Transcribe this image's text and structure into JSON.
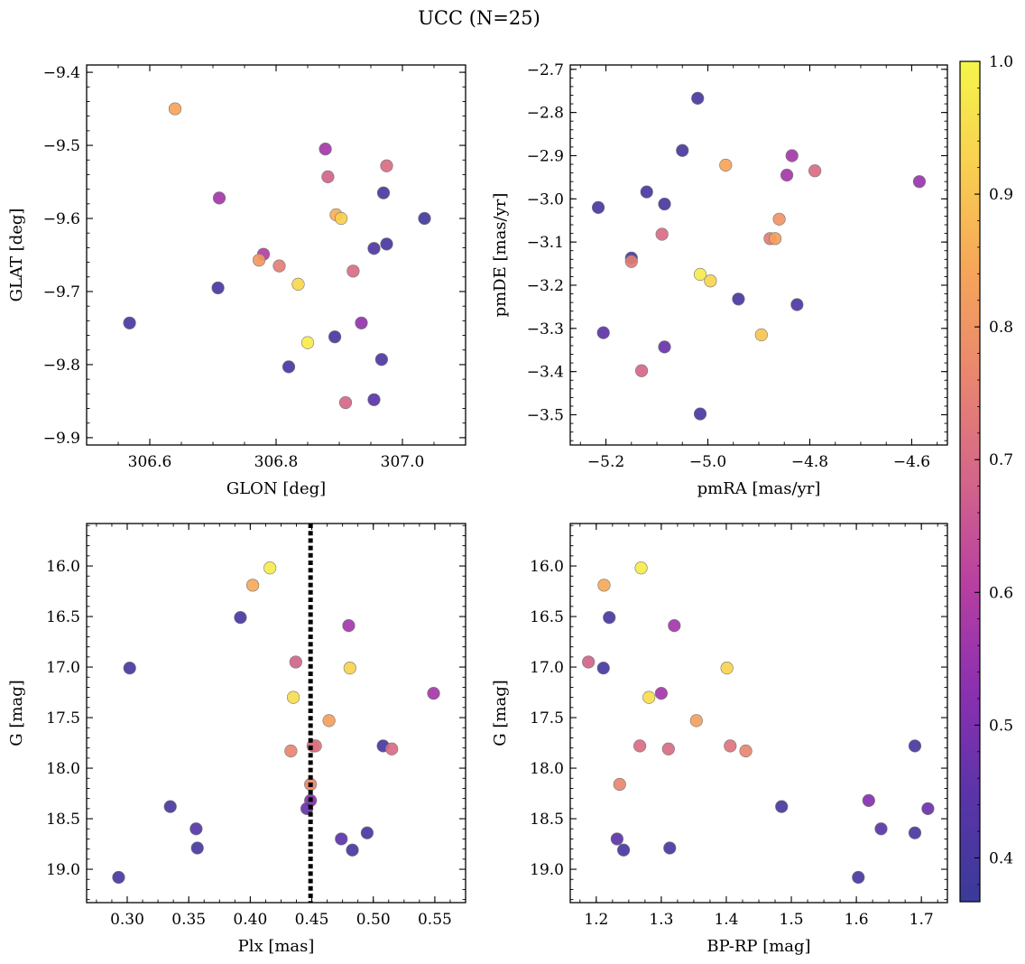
{
  "figure": {
    "title": "UCC (N=25)"
  },
  "colorbar": {
    "range": [
      0.367,
      1.0
    ],
    "ticks": [
      0.4,
      0.5,
      0.6,
      0.7,
      0.8,
      0.9,
      1.0
    ],
    "tick_labels": [
      "0.4",
      "0.5",
      "0.6",
      "0.7",
      "0.8",
      "0.9",
      "1.0"
    ],
    "colormap": "plasma",
    "colormap_stops": [
      "#3a3b98",
      "#5a34a8",
      "#8a30b0",
      "#b63fa2",
      "#d3658a",
      "#e9866f",
      "#f6a55a",
      "#f8cf50",
      "#f5f54b"
    ]
  },
  "chart_data": [
    {
      "type": "scatter",
      "xlabel": "GLON [deg]",
      "ylabel": "GLAT [deg]",
      "xlim": [
        306.5,
        307.1
      ],
      "ylim": [
        -9.91,
        -9.39
      ],
      "xticks": [
        306.6,
        306.8,
        307.0
      ],
      "xtick_labels": [
        "306.6",
        "306.8",
        "307.0"
      ],
      "yticks": [
        -9.4,
        -9.5,
        -9.6,
        -9.7,
        -9.8,
        -9.9
      ],
      "ytick_labels": [
        "−9.4",
        "−9.5",
        "−9.6",
        "−9.7",
        "−9.8",
        "−9.9"
      ],
      "points": [
        {
          "x": 306.64,
          "y": -9.45,
          "c": 0.84
        },
        {
          "x": 306.878,
          "y": -9.505,
          "c": 0.57
        },
        {
          "x": 306.975,
          "y": -9.528,
          "c": 0.7
        },
        {
          "x": 306.882,
          "y": -9.543,
          "c": 0.68
        },
        {
          "x": 306.97,
          "y": -9.565,
          "c": 0.4
        },
        {
          "x": 306.71,
          "y": -9.572,
          "c": 0.57
        },
        {
          "x": 306.895,
          "y": -9.595,
          "c": 0.86
        },
        {
          "x": 306.903,
          "y": -9.6,
          "c": 0.92
        },
        {
          "x": 307.035,
          "y": -9.6,
          "c": 0.39
        },
        {
          "x": 306.975,
          "y": -9.635,
          "c": 0.4
        },
        {
          "x": 306.955,
          "y": -9.641,
          "c": 0.42
        },
        {
          "x": 306.78,
          "y": -9.649,
          "c": 0.6
        },
        {
          "x": 306.773,
          "y": -9.657,
          "c": 0.81
        },
        {
          "x": 306.805,
          "y": -9.665,
          "c": 0.74
        },
        {
          "x": 306.922,
          "y": -9.672,
          "c": 0.7
        },
        {
          "x": 306.835,
          "y": -9.69,
          "c": 0.94
        },
        {
          "x": 306.708,
          "y": -9.695,
          "c": 0.4
        },
        {
          "x": 306.568,
          "y": -9.743,
          "c": 0.41
        },
        {
          "x": 306.935,
          "y": -9.743,
          "c": 0.54
        },
        {
          "x": 306.893,
          "y": -9.762,
          "c": 0.4
        },
        {
          "x": 306.85,
          "y": -9.77,
          "c": 0.98
        },
        {
          "x": 306.967,
          "y": -9.793,
          "c": 0.42
        },
        {
          "x": 306.82,
          "y": -9.803,
          "c": 0.4
        },
        {
          "x": 306.955,
          "y": -9.848,
          "c": 0.44
        },
        {
          "x": 306.91,
          "y": -9.852,
          "c": 0.69
        }
      ]
    },
    {
      "type": "scatter",
      "xlabel": "pmRA [mas/yr]",
      "ylabel": "pmDE [mas/yr]",
      "xlim": [
        -5.27,
        -4.53
      ],
      "ylim": [
        -3.57,
        -2.69
      ],
      "xticks": [
        -5.2,
        -5.0,
        -4.8,
        -4.6
      ],
      "xtick_labels": [
        "−5.2",
        "−5.0",
        "−4.8",
        "−4.6"
      ],
      "yticks": [
        -2.7,
        -2.8,
        -2.9,
        -3.0,
        -3.1,
        -3.2,
        -3.3,
        -3.4,
        -3.5
      ],
      "ytick_labels": [
        "−2.7",
        "−2.8",
        "−2.9",
        "−3.0",
        "−3.1",
        "−3.2",
        "−3.3",
        "−3.4",
        "−3.5"
      ],
      "points": [
        {
          "x": -5.02,
          "y": -2.767,
          "c": 0.4
        },
        {
          "x": -5.05,
          "y": -2.888,
          "c": 0.41
        },
        {
          "x": -4.835,
          "y": -2.9,
          "c": 0.57
        },
        {
          "x": -4.965,
          "y": -2.922,
          "c": 0.84
        },
        {
          "x": -4.79,
          "y": -2.935,
          "c": 0.7
        },
        {
          "x": -4.845,
          "y": -2.945,
          "c": 0.57
        },
        {
          "x": -4.585,
          "y": -2.96,
          "c": 0.55
        },
        {
          "x": -5.12,
          "y": -2.984,
          "c": 0.4
        },
        {
          "x": -5.085,
          "y": -3.012,
          "c": 0.4
        },
        {
          "x": -5.215,
          "y": -3.02,
          "c": 0.4
        },
        {
          "x": -4.86,
          "y": -3.047,
          "c": 0.8
        },
        {
          "x": -5.09,
          "y": -3.082,
          "c": 0.7
        },
        {
          "x": -4.878,
          "y": -3.092,
          "c": 0.74
        },
        {
          "x": -4.868,
          "y": -3.092,
          "c": 0.83
        },
        {
          "x": -5.15,
          "y": -3.137,
          "c": 0.4
        },
        {
          "x": -5.15,
          "y": -3.145,
          "c": 0.74
        },
        {
          "x": -5.015,
          "y": -3.175,
          "c": 0.98
        },
        {
          "x": -4.995,
          "y": -3.19,
          "c": 0.93
        },
        {
          "x": -4.94,
          "y": -3.232,
          "c": 0.4
        },
        {
          "x": -4.825,
          "y": -3.245,
          "c": 0.42
        },
        {
          "x": -5.205,
          "y": -3.31,
          "c": 0.45
        },
        {
          "x": -4.895,
          "y": -3.315,
          "c": 0.9
        },
        {
          "x": -5.085,
          "y": -3.343,
          "c": 0.47
        },
        {
          "x": -5.13,
          "y": -3.398,
          "c": 0.69
        },
        {
          "x": -5.015,
          "y": -3.498,
          "c": 0.4
        }
      ]
    },
    {
      "type": "scatter",
      "xlabel": "Plx [mas]",
      "ylabel": "G [mag]",
      "xlim": [
        0.267,
        0.575
      ],
      "ylim": [
        19.33,
        15.58
      ],
      "xticks": [
        0.3,
        0.35,
        0.4,
        0.45,
        0.5,
        0.55
      ],
      "xtick_labels": [
        "0.30",
        "0.35",
        "0.40",
        "0.45",
        "0.50",
        "0.55"
      ],
      "yticks": [
        16.0,
        16.5,
        17.0,
        17.5,
        18.0,
        18.5,
        19.0
      ],
      "ytick_labels": [
        "16.0",
        "16.5",
        "17.0",
        "17.5",
        "18.0",
        "18.5",
        "19.0"
      ],
      "vline": 0.449,
      "points": [
        {
          "x": 0.416,
          "y": 16.02,
          "c": 0.98
        },
        {
          "x": 0.402,
          "y": 16.19,
          "c": 0.85
        },
        {
          "x": 0.392,
          "y": 16.51,
          "c": 0.4
        },
        {
          "x": 0.48,
          "y": 16.59,
          "c": 0.57
        },
        {
          "x": 0.437,
          "y": 16.95,
          "c": 0.68
        },
        {
          "x": 0.302,
          "y": 17.01,
          "c": 0.4
        },
        {
          "x": 0.481,
          "y": 17.01,
          "c": 0.93
        },
        {
          "x": 0.549,
          "y": 17.26,
          "c": 0.57
        },
        {
          "x": 0.435,
          "y": 17.3,
          "c": 0.95
        },
        {
          "x": 0.464,
          "y": 17.53,
          "c": 0.83
        },
        {
          "x": 0.508,
          "y": 17.78,
          "c": 0.4
        },
        {
          "x": 0.451,
          "y": 17.78,
          "c": 0.7
        },
        {
          "x": 0.453,
          "y": 17.78,
          "c": 0.72
        },
        {
          "x": 0.515,
          "y": 17.81,
          "c": 0.7
        },
        {
          "x": 0.433,
          "y": 17.83,
          "c": 0.76
        },
        {
          "x": 0.449,
          "y": 18.16,
          "c": 0.76
        },
        {
          "x": 0.449,
          "y": 18.32,
          "c": 0.52
        },
        {
          "x": 0.335,
          "y": 18.38,
          "c": 0.4
        },
        {
          "x": 0.446,
          "y": 18.4,
          "c": 0.47
        },
        {
          "x": 0.356,
          "y": 18.6,
          "c": 0.44
        },
        {
          "x": 0.495,
          "y": 18.64,
          "c": 0.4
        },
        {
          "x": 0.474,
          "y": 18.7,
          "c": 0.45
        },
        {
          "x": 0.357,
          "y": 18.79,
          "c": 0.4
        },
        {
          "x": 0.483,
          "y": 18.81,
          "c": 0.4
        },
        {
          "x": 0.293,
          "y": 19.08,
          "c": 0.4
        }
      ]
    },
    {
      "type": "scatter",
      "xlabel": "BP-RP [mag]",
      "ylabel": "G [mag]",
      "xlim": [
        1.16,
        1.74
      ],
      "ylim": [
        19.33,
        15.58
      ],
      "xticks": [
        1.2,
        1.3,
        1.4,
        1.5,
        1.6,
        1.7
      ],
      "xtick_labels": [
        "1.2",
        "1.3",
        "1.4",
        "1.5",
        "1.6",
        "1.7"
      ],
      "yticks": [
        16.0,
        16.5,
        17.0,
        17.5,
        18.0,
        18.5,
        19.0
      ],
      "ytick_labels": [
        "16.0",
        "16.5",
        "17.0",
        "17.5",
        "18.0",
        "18.5",
        "19.0"
      ],
      "points": [
        {
          "x": 1.269,
          "y": 16.02,
          "c": 0.98
        },
        {
          "x": 1.212,
          "y": 16.19,
          "c": 0.85
        },
        {
          "x": 1.22,
          "y": 16.51,
          "c": 0.4
        },
        {
          "x": 1.32,
          "y": 16.59,
          "c": 0.57
        },
        {
          "x": 1.188,
          "y": 16.95,
          "c": 0.68
        },
        {
          "x": 1.211,
          "y": 17.01,
          "c": 0.4
        },
        {
          "x": 1.401,
          "y": 17.01,
          "c": 0.93
        },
        {
          "x": 1.3,
          "y": 17.26,
          "c": 0.57
        },
        {
          "x": 1.281,
          "y": 17.3,
          "c": 0.95
        },
        {
          "x": 1.354,
          "y": 17.53,
          "c": 0.83
        },
        {
          "x": 1.267,
          "y": 17.78,
          "c": 0.7
        },
        {
          "x": 1.406,
          "y": 17.78,
          "c": 0.72
        },
        {
          "x": 1.69,
          "y": 17.78,
          "c": 0.4
        },
        {
          "x": 1.311,
          "y": 17.81,
          "c": 0.7
        },
        {
          "x": 1.43,
          "y": 17.83,
          "c": 0.76
        },
        {
          "x": 1.236,
          "y": 18.16,
          "c": 0.76
        },
        {
          "x": 1.619,
          "y": 18.32,
          "c": 0.52
        },
        {
          "x": 1.485,
          "y": 18.38,
          "c": 0.4
        },
        {
          "x": 1.71,
          "y": 18.4,
          "c": 0.47
        },
        {
          "x": 1.638,
          "y": 18.6,
          "c": 0.44
        },
        {
          "x": 1.69,
          "y": 18.64,
          "c": 0.4
        },
        {
          "x": 1.232,
          "y": 18.7,
          "c": 0.45
        },
        {
          "x": 1.313,
          "y": 18.79,
          "c": 0.4
        },
        {
          "x": 1.242,
          "y": 18.81,
          "c": 0.4
        },
        {
          "x": 1.603,
          "y": 19.08,
          "c": 0.4
        }
      ]
    }
  ]
}
